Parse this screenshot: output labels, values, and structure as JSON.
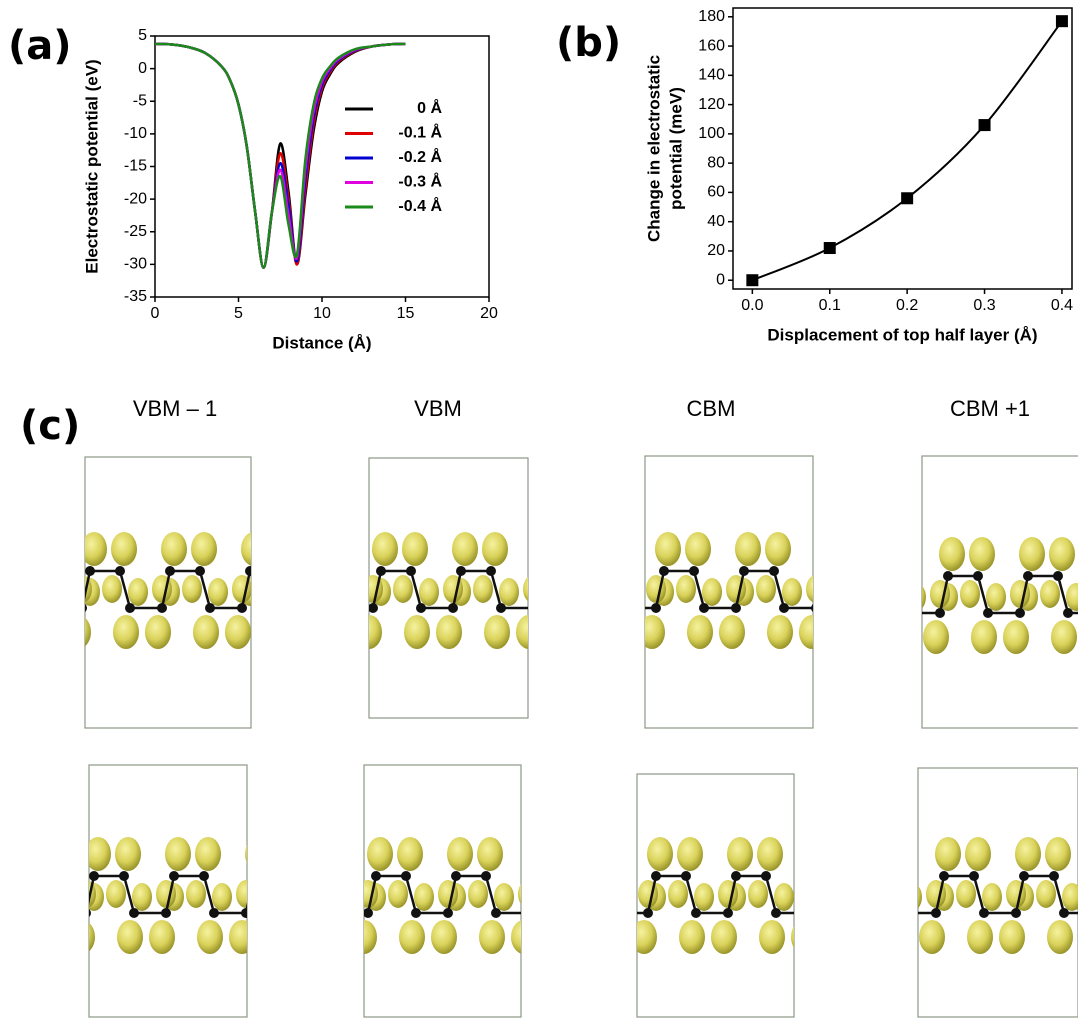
{
  "panel_labels": [
    "(a)",
    "(b)",
    "(c)"
  ],
  "chart_data": [
    {
      "type": "line",
      "xlabel": "Distance (Å)",
      "ylabel": "Electrostatic potential (eV)",
      "xlim": [
        0,
        20
      ],
      "ylim": [
        -35,
        5
      ],
      "xticks": [
        0,
        5,
        10,
        15,
        20
      ],
      "yticks": [
        5,
        0,
        -5,
        -10,
        -15,
        -20,
        -25,
        -30,
        -35
      ],
      "x": [
        0,
        1,
        2,
        3,
        4,
        4.5,
        5,
        5.5,
        6,
        6.5,
        7,
        7.5,
        8,
        8.5,
        9,
        9.5,
        10,
        10.5,
        11,
        12,
        13,
        14,
        15
      ],
      "series": [
        {
          "name": "0 Å",
          "color": "#000000",
          "values": [
            3.8,
            3.7,
            3.3,
            2.4,
            0.3,
            -1.8,
            -5.5,
            -12,
            -22,
            -30.5,
            -22,
            -11.5,
            -19,
            -30,
            -19.5,
            -9.5,
            -3.5,
            -0.8,
            0.9,
            2.6,
            3.4,
            3.7,
            3.8
          ]
        },
        {
          "name": "-0.1 Å",
          "color": "#e00000",
          "values": [
            3.8,
            3.7,
            3.3,
            2.4,
            0.3,
            -1.8,
            -5.5,
            -12,
            -22,
            -30.5,
            -22,
            -13,
            -20,
            -30,
            -18.5,
            -8.5,
            -3,
            -0.5,
            1.1,
            2.7,
            3.4,
            3.7,
            3.8
          ]
        },
        {
          "name": "-0.2 Å",
          "color": "#0000d0",
          "values": [
            3.8,
            3.7,
            3.3,
            2.4,
            0.3,
            -1.8,
            -5.5,
            -12,
            -22,
            -30.5,
            -22,
            -14.5,
            -21,
            -29.5,
            -17,
            -7.5,
            -2.5,
            -0.2,
            1.3,
            2.8,
            3.4,
            3.7,
            3.8
          ]
        },
        {
          "name": "-0.3 Å",
          "color": "#e000e0",
          "values": [
            3.8,
            3.7,
            3.3,
            2.4,
            0.3,
            -1.8,
            -5.5,
            -12,
            -22,
            -30.5,
            -22,
            -15.5,
            -22.5,
            -29,
            -15.5,
            -6.5,
            -2,
            0.1,
            1.5,
            2.9,
            3.4,
            3.7,
            3.8
          ]
        },
        {
          "name": "-0.4 Å",
          "color": "#1a8a1a",
          "values": [
            3.8,
            3.7,
            3.3,
            2.4,
            0.3,
            -1.8,
            -5.5,
            -12,
            -22,
            -30.5,
            -22,
            -16.5,
            -24,
            -28.5,
            -14,
            -5.5,
            -1.5,
            0.4,
            1.7,
            3.0,
            3.4,
            3.7,
            3.8
          ]
        }
      ]
    },
    {
      "type": "line",
      "xlabel": "Displacement of top half layer (Å)",
      "ylabel": [
        "Change in electrostatic",
        "potential (meV)"
      ],
      "xlim": [
        -0.025,
        0.413
      ],
      "ylim": [
        -6,
        186
      ],
      "xticks": [
        {
          "value": 0,
          "label": "0.0"
        },
        0.1,
        0.2,
        0.3,
        0.4
      ],
      "yticks": [
        0,
        20,
        40,
        60,
        80,
        100,
        120,
        140,
        160,
        180
      ],
      "x": [
        0,
        0.1,
        0.2,
        0.3,
        0.4
      ],
      "color": "#000000",
      "markers": true,
      "values": [
        0,
        22,
        56,
        106,
        177
      ]
    }
  ],
  "orbitals": {
    "columns": [
      "VBM – 1",
      "VBM",
      "CBM",
      "CBM +1"
    ]
  }
}
